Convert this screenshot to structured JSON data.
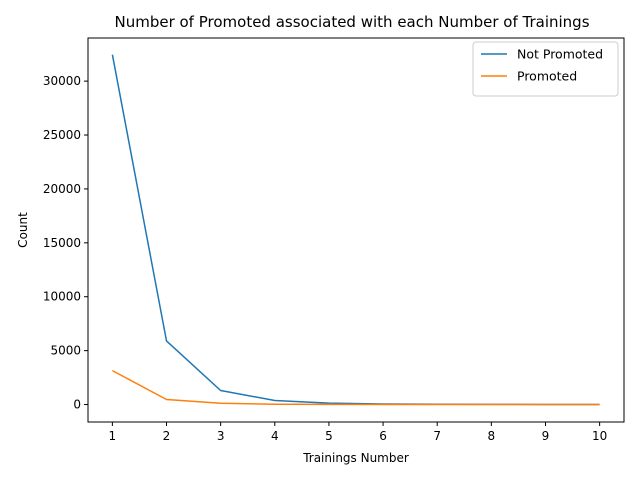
{
  "chart_data": {
    "type": "line",
    "title": "Number of Promoted associated with each Number of Trainings",
    "xlabel": "Trainings Number",
    "ylabel": "Count",
    "x": [
      1,
      2,
      3,
      4,
      5,
      6,
      7,
      8,
      9,
      10
    ],
    "xticks": [
      "1",
      "2",
      "3",
      "4",
      "5",
      "6",
      "7",
      "8",
      "9",
      "10"
    ],
    "yticks": [
      0,
      5000,
      10000,
      15000,
      20000,
      25000,
      30000
    ],
    "yticklabels": [
      "0",
      "5000",
      "10000",
      "15000",
      "20000",
      "25000",
      "30000"
    ],
    "xlim": [
      0.55,
      10.45
    ],
    "ylim": [
      -1620,
      34000
    ],
    "grid": false,
    "legend_position": "top-right",
    "series": [
      {
        "name": "Not Promoted",
        "color": "#1f77b4",
        "values": [
          32450,
          5900,
          1300,
          370,
          130,
          50,
          20,
          10,
          5,
          5
        ]
      },
      {
        "name": "Promoted",
        "color": "#ff7f0e",
        "values": [
          3150,
          470,
          110,
          25,
          8,
          4,
          2,
          1,
          1,
          1
        ]
      }
    ]
  }
}
